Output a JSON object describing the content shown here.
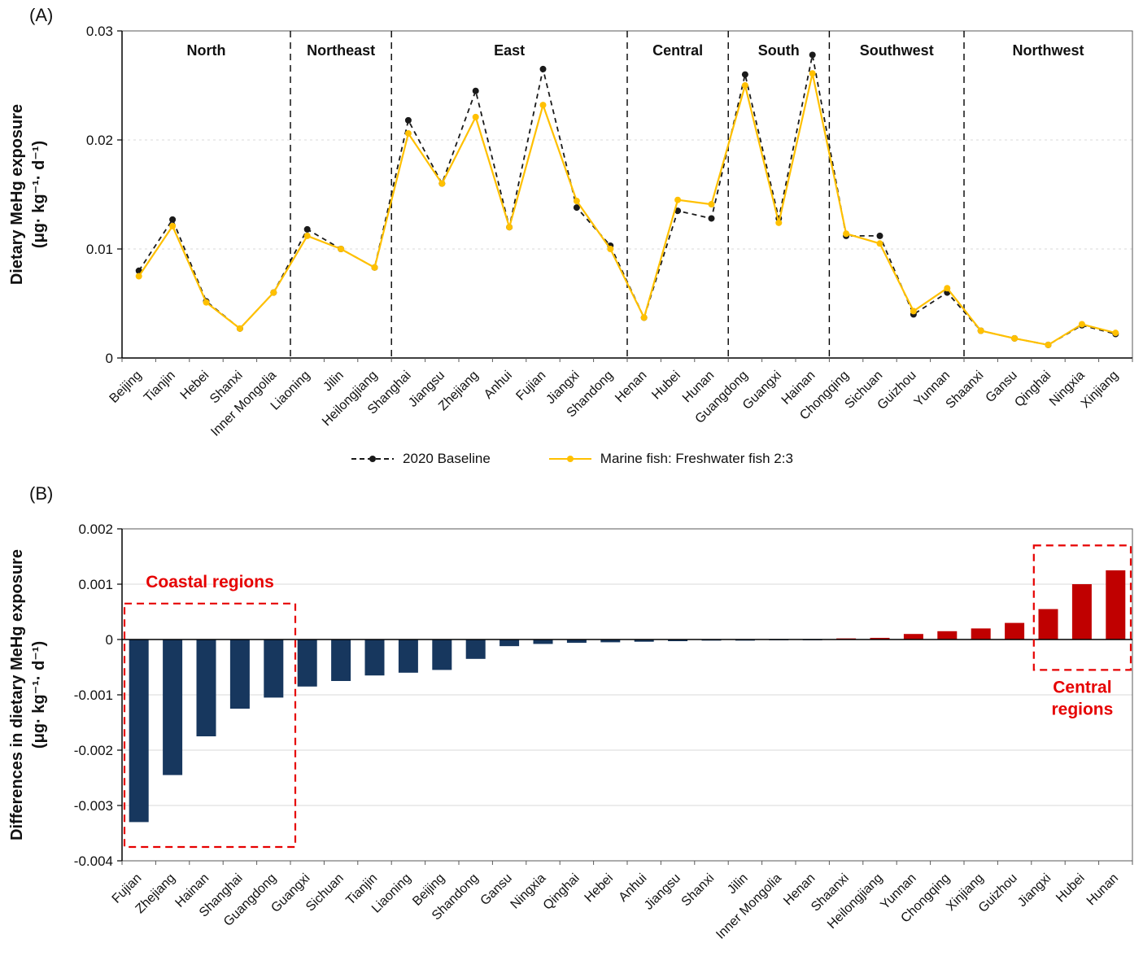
{
  "panel_a": {
    "label": "(A)",
    "ylabel_lines": [
      "Dietary MeHg exposure",
      "(μg· kg⁻¹· d⁻¹)"
    ]
  },
  "panel_b": {
    "label": "(B)",
    "ylabel_lines": [
      "Differences in dietary MeHg exposure",
      "(μg· kg⁻¹· d⁻¹)"
    ]
  },
  "colors": {
    "baseline": "#1a1a1a",
    "scenario": "#FFC000",
    "negative_bar": "#17375E",
    "positive_bar": "#C00000",
    "annotation_red": "#E60000",
    "grid": "#d9d9d9",
    "frame": "#595959"
  },
  "chart_data": [
    {
      "type": "line",
      "panel": "A",
      "ylabel_lines": [
        "Dietary MeHg exposure",
        "(μg· kg⁻¹· d⁻¹)"
      ],
      "ylim": [
        0,
        0.03
      ],
      "yticks": [
        {
          "v": 0,
          "label": "0",
          "grid": false
        },
        {
          "v": 0.01,
          "label": "0.01",
          "grid": true
        },
        {
          "v": 0.02,
          "label": "0.02",
          "grid": true
        },
        {
          "v": 0.03,
          "label": "0.03",
          "grid": false
        }
      ],
      "regions": [
        {
          "name": "North",
          "count": 5
        },
        {
          "name": "Northeast",
          "count": 3
        },
        {
          "name": "East",
          "count": 7
        },
        {
          "name": "Central",
          "count": 3
        },
        {
          "name": "South",
          "count": 3
        },
        {
          "name": "Southwest",
          "count": 4
        },
        {
          "name": "Northwest",
          "count": 5
        }
      ],
      "categories": [
        "Beijing",
        "Tianjin",
        "Hebei",
        "Shanxi",
        "Inner Mongolia",
        "Liaoning",
        "Jilin",
        "Heilongjiang",
        "Shanghai",
        "Jiangsu",
        "Zhejiang",
        "Anhui",
        "Fujian",
        "Jiangxi",
        "Shandong",
        "Henan",
        "Hubei",
        "Hunan",
        "Guangdong",
        "Guangxi",
        "Hainan",
        "Chongqing",
        "Sichuan",
        "Guizhou",
        "Yunnan",
        "Shaanxi",
        "Gansu",
        "Qinghai",
        "Ningxia",
        "Xinjiang"
      ],
      "series": [
        {
          "name": "2020 Baseline",
          "color": "#1a1a1a",
          "style": "dashed",
          "values": [
            0.008,
            0.0127,
            0.0052,
            0.0027,
            0.006,
            0.0118,
            0.01,
            0.0083,
            0.0218,
            0.016,
            0.0245,
            0.012,
            0.0265,
            0.0138,
            0.0103,
            0.0037,
            0.0135,
            0.0128,
            0.026,
            0.0128,
            0.0278,
            0.0112,
            0.0112,
            0.004,
            0.006,
            0.0025,
            0.0018,
            0.0012,
            0.003,
            0.0022
          ]
        },
        {
          "name": "Marine fish: Freshwater fish 2:3",
          "color": "#FFC000",
          "style": "solid",
          "values": [
            0.0075,
            0.0121,
            0.0051,
            0.0027,
            0.006,
            0.0112,
            0.01,
            0.0083,
            0.0206,
            0.016,
            0.0221,
            0.012,
            0.0232,
            0.0144,
            0.01,
            0.0037,
            0.0145,
            0.0141,
            0.025,
            0.0124,
            0.0261,
            0.0114,
            0.0105,
            0.0043,
            0.0064,
            0.0025,
            0.0018,
            0.0012,
            0.0031,
            0.0023
          ]
        }
      ]
    },
    {
      "type": "bar",
      "panel": "B",
      "ylabel_lines": [
        "Differences in dietary MeHg exposure",
        "(μg· kg⁻¹· d⁻¹)"
      ],
      "ylim": [
        -0.004,
        0.002
      ],
      "yticks": [
        {
          "v": 0.002,
          "label": "0.002"
        },
        {
          "v": 0.001,
          "label": "0.001"
        },
        {
          "v": 0,
          "label": "0"
        },
        {
          "v": -0.001,
          "label": "-0.001"
        },
        {
          "v": -0.002,
          "label": "-0.002"
        },
        {
          "v": -0.003,
          "label": "-0.003"
        },
        {
          "v": -0.004,
          "label": "-0.004"
        }
      ],
      "negative_color": "#17375E",
      "positive_color": "#C00000",
      "categories": [
        "Fujian",
        "Zhejiang",
        "Hainan",
        "Shanghai",
        "Guangdong",
        "Guangxi",
        "Sichuan",
        "Tianjin",
        "Liaoning",
        "Beijing",
        "Shandong",
        "Gansu",
        "Ningxia",
        "Qinghai",
        "Hebei",
        "Anhui",
        "Jiangsu",
        "Shanxi",
        "Jilin",
        "Inner Mongolia",
        "Henan",
        "Shaanxi",
        "Heilongjiang",
        "Yunnan",
        "Chongqing",
        "Xinjiang",
        "Guizhou",
        "Jiangxi",
        "Hubei",
        "Hunan"
      ],
      "values": [
        -0.0033,
        -0.00245,
        -0.00175,
        -0.00125,
        -0.00105,
        -0.00085,
        -0.00075,
        -0.00065,
        -0.0006,
        -0.00055,
        -0.00035,
        -0.00012,
        -8e-05,
        -6e-05,
        -5e-05,
        -4e-05,
        -3e-05,
        -2e-05,
        -2e-05,
        -1e-05,
        -1e-05,
        2e-05,
        3e-05,
        0.0001,
        0.00015,
        0.0002,
        0.0003,
        0.00055,
        0.001,
        0.00125
      ],
      "annotations": [
        {
          "label_lines": [
            "Coastal regions"
          ],
          "from": 0,
          "to": 4,
          "y_top": 0.00065,
          "y_bottom": -0.00375,
          "label_position": "above",
          "color": "#E60000"
        },
        {
          "label_lines": [
            "Central",
            "regions"
          ],
          "from": 27,
          "to": 29,
          "y_top": 0.0017,
          "y_bottom": -0.00055,
          "label_position": "below",
          "color": "#E60000"
        }
      ]
    }
  ]
}
